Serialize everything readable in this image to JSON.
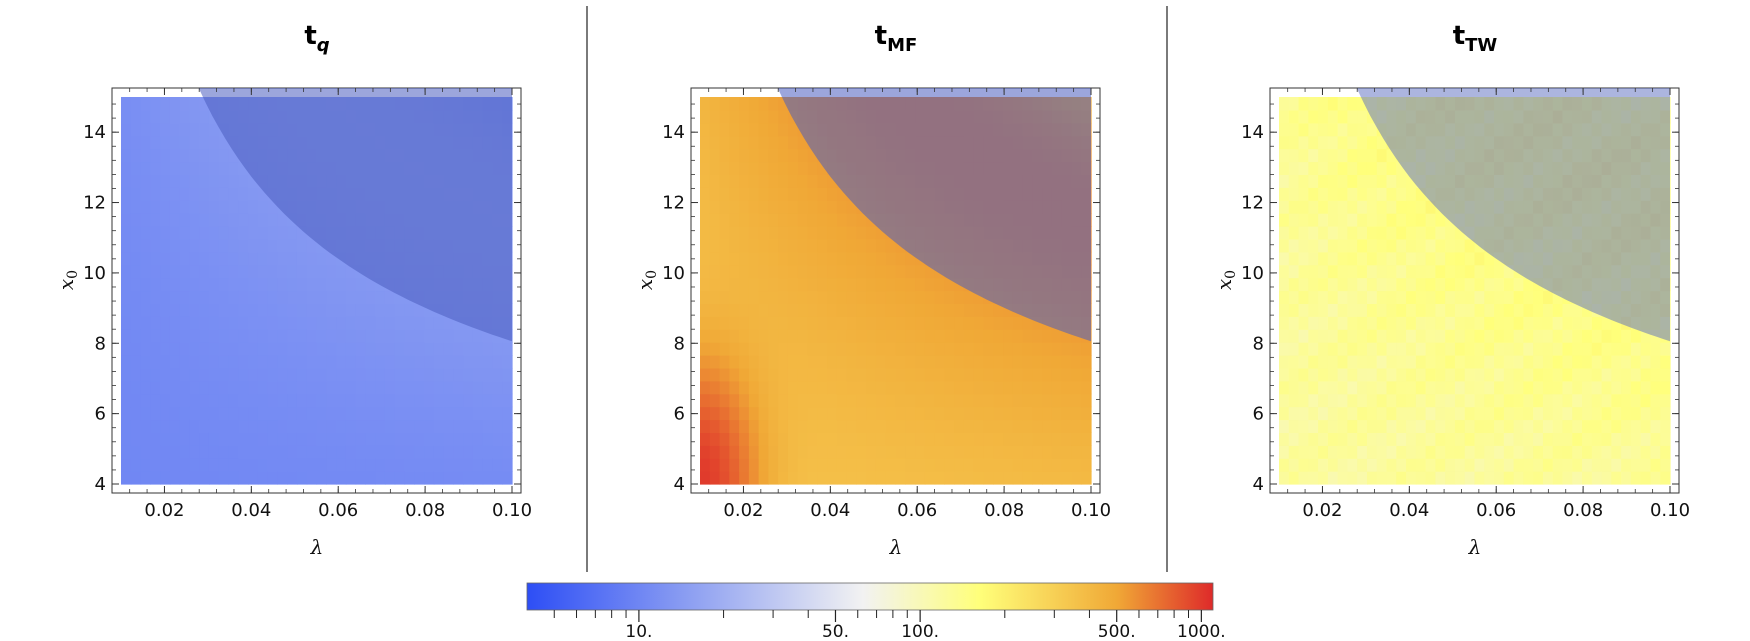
{
  "chart_data": [
    {
      "type": "heatmap",
      "title": "t",
      "title_subscript": "q",
      "title_subscript_italic": true,
      "xlabel": "λ",
      "ylabel": "x",
      "ylabel_subscript": "0",
      "xlim": [
        0.01,
        0.1
      ],
      "ylim": [
        4,
        15
      ],
      "x_ticks": [
        "0.02",
        "0.04",
        "0.06",
        "0.08",
        "0.10"
      ],
      "y_ticks": [
        "4",
        "6",
        "8",
        "10",
        "12",
        "14"
      ],
      "x_tick_values": [
        0.02,
        0.04,
        0.06,
        0.08,
        0.1
      ],
      "y_tick_values": [
        4,
        6,
        8,
        10,
        12,
        14
      ],
      "grid": false,
      "field": {
        "bands": [
          1,
          4,
          9
        ],
        "min": 4,
        "peaks": [
          18,
          40
        ],
        "peak_widths": [
          3.0,
          3.5
        ],
        "diag": 0,
        "scatter": 0
      },
      "overlay": {
        "color": "#4a5cbf",
        "opacity": 0.55
      }
    },
    {
      "type": "heatmap",
      "title": "t",
      "title_subscript": "MF",
      "title_subscript_italic": false,
      "xlabel": "λ",
      "ylabel": "x",
      "ylabel_subscript": "0",
      "xlim": [
        0.01,
        0.1
      ],
      "ylim": [
        4,
        15
      ],
      "x_ticks": [
        "0.02",
        "0.04",
        "0.06",
        "0.08",
        "0.10"
      ],
      "y_ticks": [
        "4",
        "6",
        "8",
        "10",
        "12",
        "14"
      ],
      "x_tick_values": [
        0.02,
        0.04,
        0.06,
        0.08,
        0.1
      ],
      "y_tick_values": [
        4,
        6,
        8,
        10,
        12,
        14
      ],
      "grid": false,
      "field": {
        "bands": [
          1,
          4,
          9
        ],
        "min": 8,
        "peaks": [
          1000,
          120
        ],
        "peak_widths": [
          2.6,
          3.6
        ],
        "diag": 1,
        "scatter": 0
      },
      "overlay": {
        "color": "#4a5cbf",
        "opacity": 0.55
      }
    },
    {
      "type": "heatmap",
      "title": "t",
      "title_subscript": "TW",
      "title_subscript_italic": false,
      "xlabel": "λ",
      "ylabel": "x",
      "ylabel_subscript": "0",
      "xlim": [
        0.01,
        0.1
      ],
      "ylim": [
        4,
        15
      ],
      "x_ticks": [
        "0.02",
        "0.04",
        "0.06",
        "0.08",
        "0.10"
      ],
      "y_ticks": [
        "4",
        "6",
        "8",
        "10",
        "12",
        "14"
      ],
      "x_tick_values": [
        0.02,
        0.04,
        0.06,
        0.08,
        0.1
      ],
      "y_tick_values": [
        4,
        6,
        8,
        10,
        12,
        14
      ],
      "grid": false,
      "field": {
        "bands": [
          1,
          4,
          9
        ],
        "min": 60,
        "peaks": [
          170,
          210
        ],
        "peak_widths": [
          4.0,
          4.5
        ],
        "diag": 0,
        "scatter": 1
      },
      "overlay": {
        "color": "#5a6cc0",
        "opacity": 0.5
      }
    }
  ],
  "colorbar": {
    "scale": "log",
    "range": [
      4,
      1100
    ],
    "labels": [
      "10.",
      "50.",
      "100.",
      "500.",
      "1000."
    ],
    "label_values": [
      10,
      50,
      100,
      500,
      1000
    ],
    "colors": [
      "#2d4ef5",
      "#8ea0f2",
      "#f2f2f2",
      "#ffff7a",
      "#f0a836",
      "#de2a2a"
    ]
  }
}
